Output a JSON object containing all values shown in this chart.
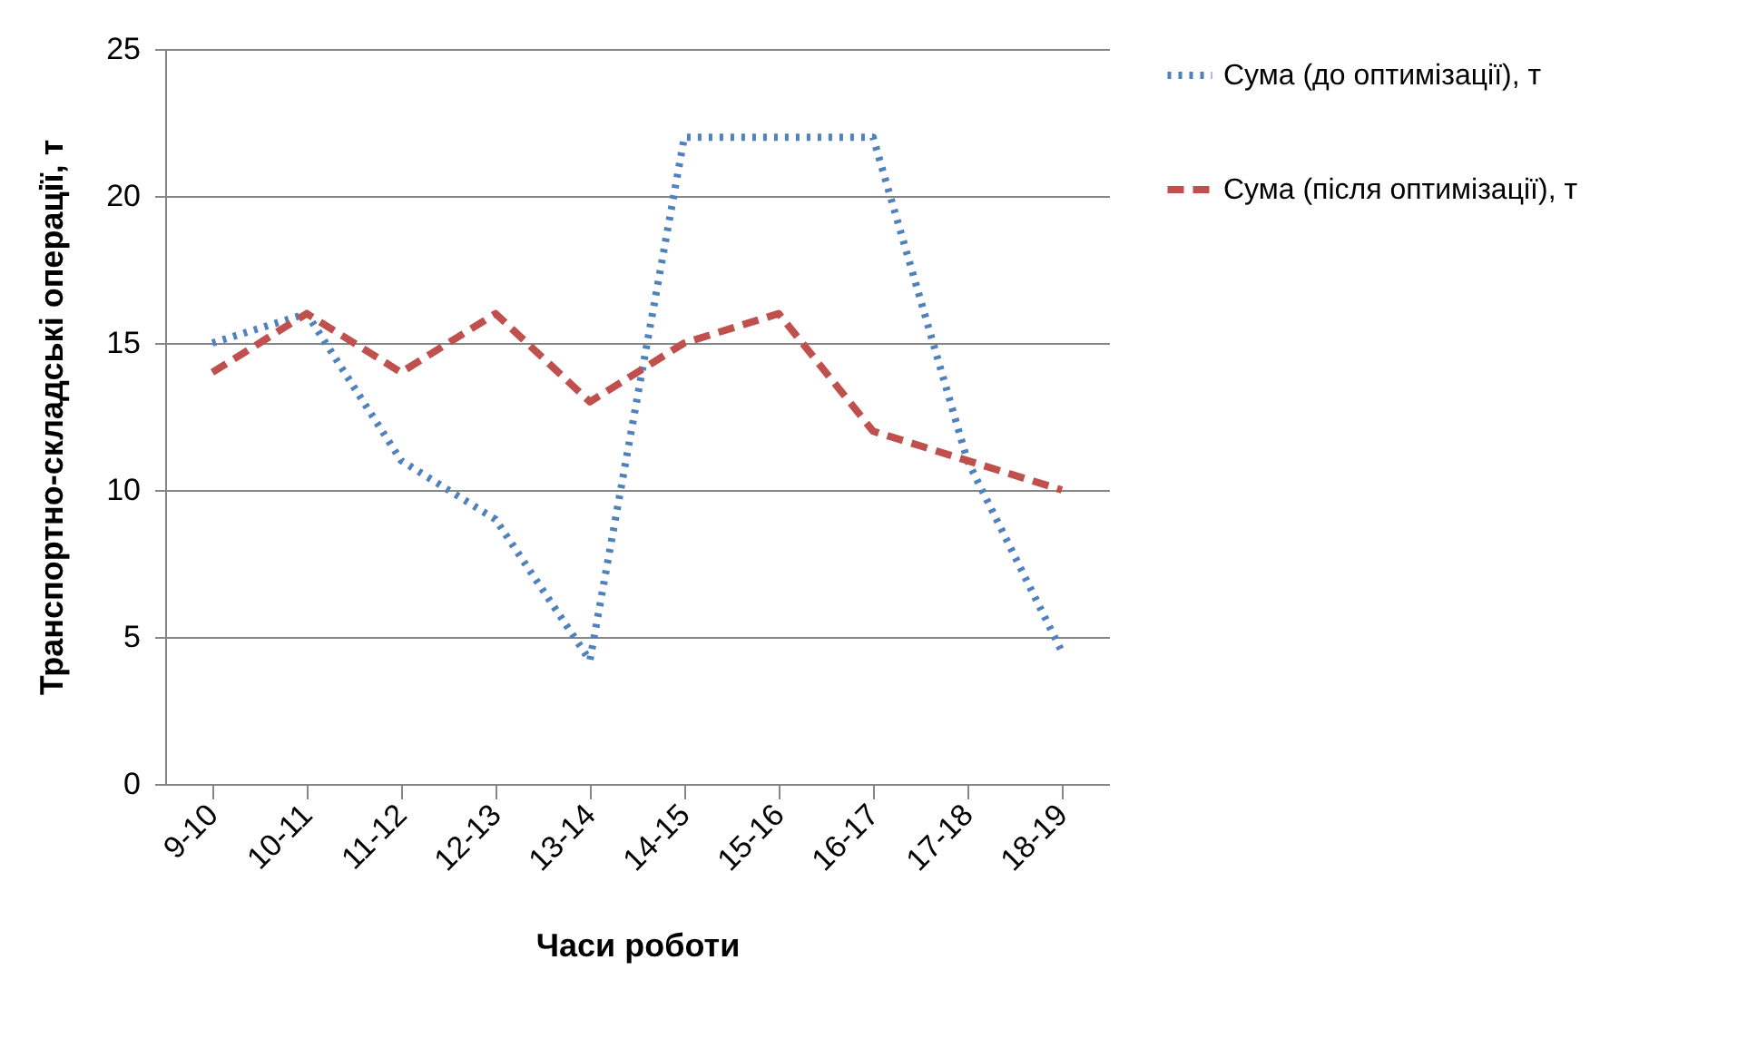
{
  "chart_data": {
    "type": "line",
    "xlabel": "Часи роботи",
    "ylabel": "Транспортно-складські операції, т",
    "categories": [
      "9-10",
      "10-11",
      "11-12",
      "12-13",
      "13-14",
      "14-15",
      "15-16",
      "16-17",
      "17-18",
      "18-19"
    ],
    "series": [
      {
        "name": "Сума (до оптимізації), т",
        "color": "#4f81bd",
        "line_style": "dotted",
        "values": [
          15,
          16,
          11,
          9,
          4.2,
          22,
          22,
          22,
          11,
          4.5
        ]
      },
      {
        "name": "Сума (після оптимізації), т",
        "color": "#c0504d",
        "line_style": "dashed",
        "values": [
          14,
          16,
          14,
          16,
          13,
          15,
          16,
          12,
          11,
          10
        ]
      }
    ],
    "ylim": [
      0,
      25
    ],
    "yticks": [
      0,
      5,
      10,
      15,
      20,
      25
    ],
    "grid": "y",
    "legend": "right",
    "marker": "none"
  }
}
